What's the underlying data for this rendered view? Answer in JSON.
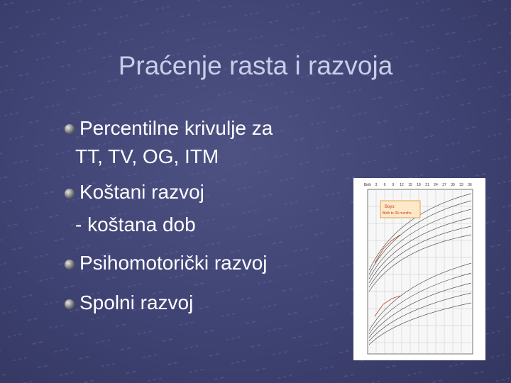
{
  "title": "Praćenje rasta i razvoja",
  "bullets": [
    {
      "lines": [
        "Percentilne krivulje za",
        "TT, TV, OG, ITM"
      ]
    },
    {
      "lines": [
        "Koštani razvoj",
        "- koštana dob"
      ]
    },
    {
      "lines": [
        "Psihomotorički razvoj"
      ]
    },
    {
      "lines": [
        "Spolni razvoj"
      ]
    }
  ],
  "figure": {
    "top_axis": [
      "Birth",
      "3",
      "6",
      "9",
      "12",
      "15",
      "18",
      "21",
      "24",
      "27",
      "30",
      "33",
      "36"
    ],
    "caption": [
      "Boys:",
      "Birth to 36 months"
    ]
  }
}
